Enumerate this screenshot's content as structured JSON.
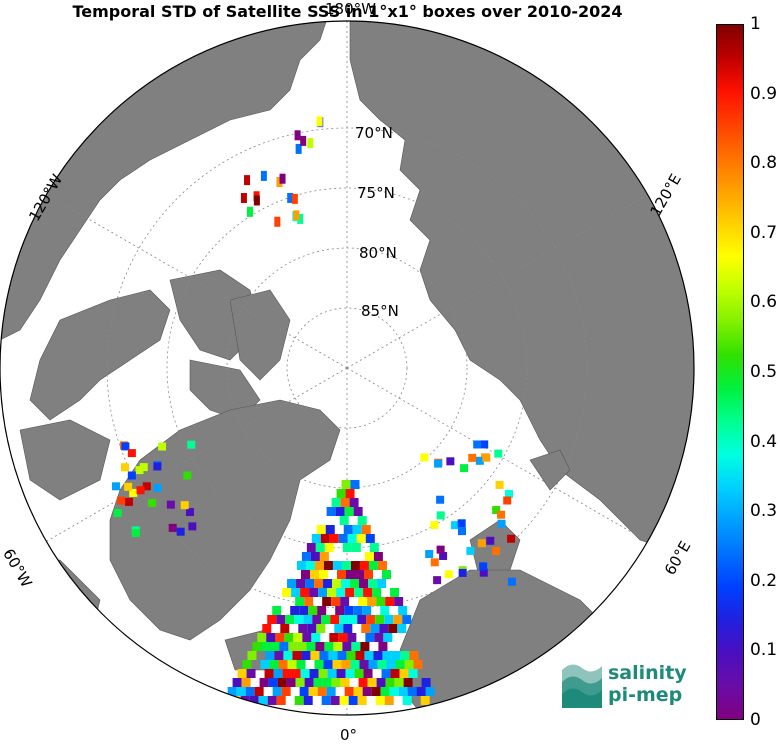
{
  "title": "Temporal STD of Satellite SSS in 1°x1° boxes over 2010-2024",
  "map": {
    "projection": "north-polar-stereographic",
    "latitude_labels": [
      "70°N",
      "75°N",
      "80°N",
      "85°N"
    ],
    "longitude_labels": [
      "0°",
      "60°E",
      "120°E",
      "180°W",
      "120°W",
      "60°W"
    ],
    "land_color": "#808080",
    "ocean_color": "#ffffff"
  },
  "colorbar": {
    "min": 0,
    "max": 1,
    "ticks": [
      "0",
      "0.1",
      "0.2",
      "0.3",
      "0.4",
      "0.5",
      "0.6",
      "0.7",
      "0.8",
      "0.9",
      "1"
    ],
    "colors": [
      "#800080",
      "#6a0ca8",
      "#4b0fc0",
      "#2020e0",
      "#0040ff",
      "#0070ff",
      "#00a0ff",
      "#00d0ff",
      "#00ffe0",
      "#00ff90",
      "#00f040",
      "#30e000",
      "#80f000",
      "#c0ff00",
      "#ffff00",
      "#ffd000",
      "#ffa000",
      "#ff7000",
      "#ff4000",
      "#ff1000",
      "#c00000",
      "#800000"
    ],
    "colormap": "jet-like"
  },
  "logo": {
    "line1": "salinity",
    "line2": "pi-mep"
  }
}
